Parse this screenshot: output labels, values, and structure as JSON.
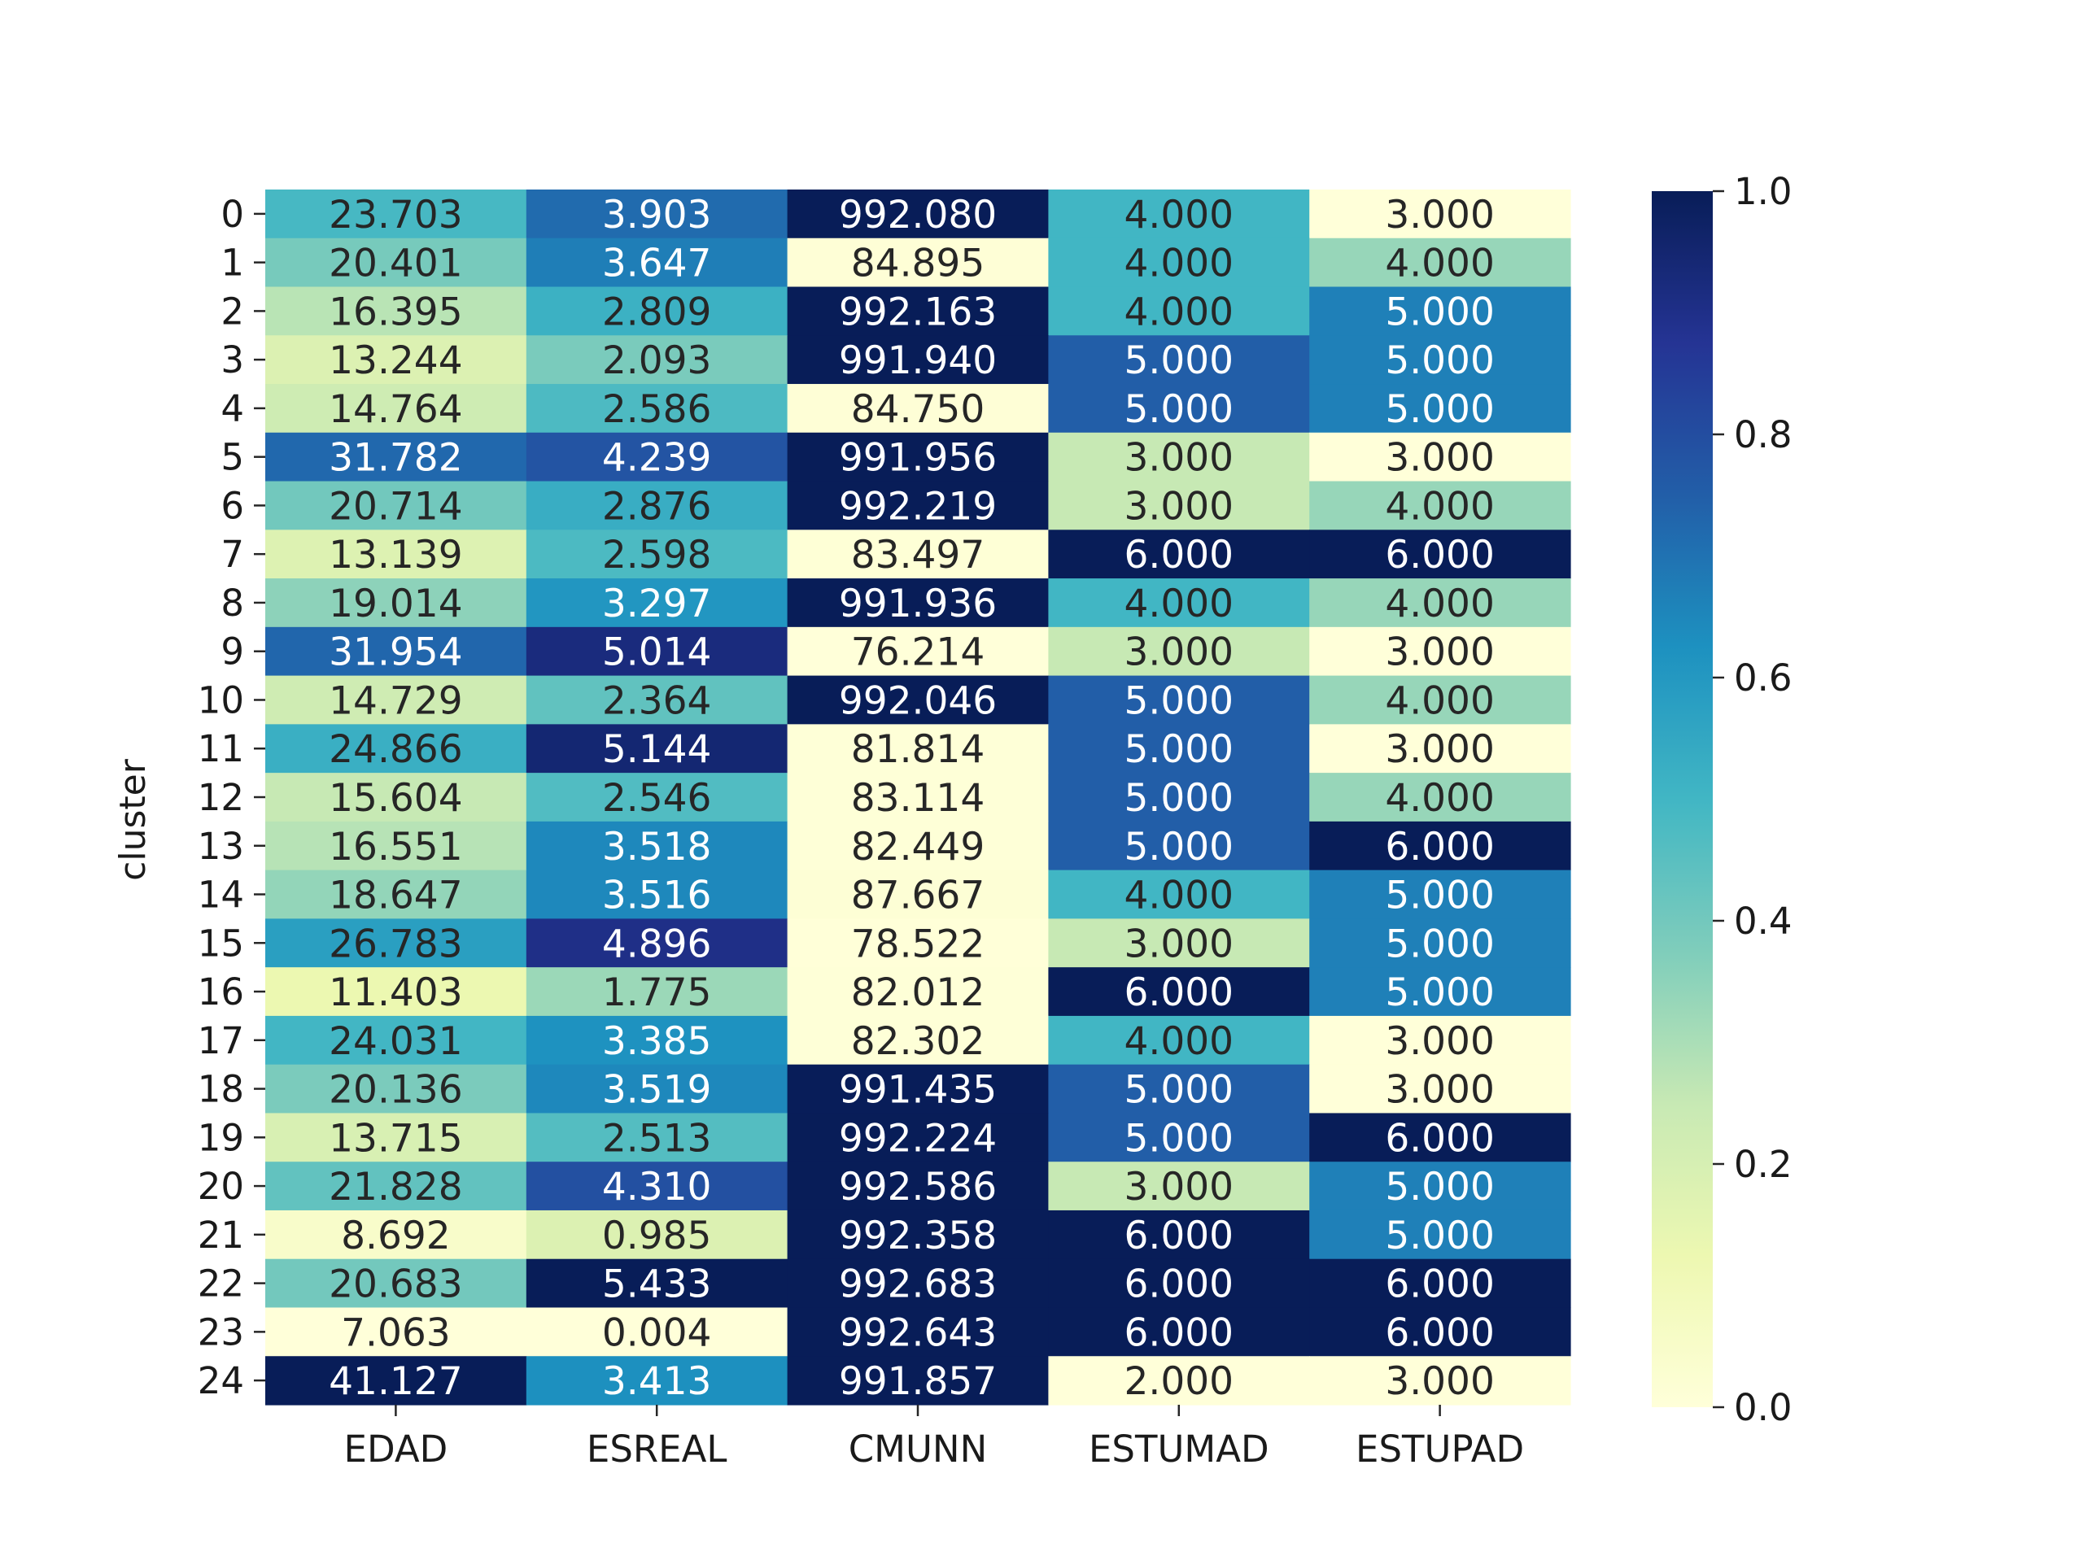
{
  "chart_data": {
    "type": "heatmap",
    "title": "",
    "xlabel": "",
    "ylabel": "cluster",
    "columns": [
      "EDAD",
      "ESREAL",
      "CMUNN",
      "ESTUMAD",
      "ESTUPAD"
    ],
    "rows": [
      "0",
      "1",
      "2",
      "3",
      "4",
      "5",
      "6",
      "7",
      "8",
      "9",
      "10",
      "11",
      "12",
      "13",
      "14",
      "15",
      "16",
      "17",
      "18",
      "19",
      "20",
      "21",
      "22",
      "23",
      "24"
    ],
    "annotations": [
      [
        "23.703",
        "3.903",
        "992.080",
        "4.000",
        "3.000"
      ],
      [
        "20.401",
        "3.647",
        "84.895",
        "4.000",
        "4.000"
      ],
      [
        "16.395",
        "2.809",
        "992.163",
        "4.000",
        "5.000"
      ],
      [
        "13.244",
        "2.093",
        "991.940",
        "5.000",
        "5.000"
      ],
      [
        "14.764",
        "2.586",
        "84.750",
        "5.000",
        "5.000"
      ],
      [
        "31.782",
        "4.239",
        "991.956",
        "3.000",
        "3.000"
      ],
      [
        "20.714",
        "2.876",
        "992.219",
        "3.000",
        "4.000"
      ],
      [
        "13.139",
        "2.598",
        "83.497",
        "6.000",
        "6.000"
      ],
      [
        "19.014",
        "3.297",
        "991.936",
        "4.000",
        "4.000"
      ],
      [
        "31.954",
        "5.014",
        "76.214",
        "3.000",
        "3.000"
      ],
      [
        "14.729",
        "2.364",
        "992.046",
        "5.000",
        "4.000"
      ],
      [
        "24.866",
        "5.144",
        "81.814",
        "5.000",
        "3.000"
      ],
      [
        "15.604",
        "2.546",
        "83.114",
        "5.000",
        "4.000"
      ],
      [
        "16.551",
        "3.518",
        "82.449",
        "5.000",
        "6.000"
      ],
      [
        "18.647",
        "3.516",
        "87.667",
        "4.000",
        "5.000"
      ],
      [
        "26.783",
        "4.896",
        "78.522",
        "3.000",
        "5.000"
      ],
      [
        "11.403",
        "1.775",
        "82.012",
        "6.000",
        "5.000"
      ],
      [
        "24.031",
        "3.385",
        "82.302",
        "4.000",
        "3.000"
      ],
      [
        "20.136",
        "3.519",
        "991.435",
        "5.000",
        "3.000"
      ],
      [
        "13.715",
        "2.513",
        "992.224",
        "5.000",
        "6.000"
      ],
      [
        "21.828",
        "4.310",
        "992.586",
        "3.000",
        "5.000"
      ],
      [
        "8.692",
        "0.985",
        "992.358",
        "6.000",
        "5.000"
      ],
      [
        "20.683",
        "5.433",
        "992.683",
        "6.000",
        "6.000"
      ],
      [
        "7.063",
        "0.004",
        "992.643",
        "6.000",
        "6.000"
      ],
      [
        "41.127",
        "3.413",
        "991.857",
        "2.000",
        "3.000"
      ]
    ],
    "colorbar": {
      "cmap": "YlGnBu",
      "vmin": 0.0,
      "vmax": 1.0,
      "ticks": [
        "0.0",
        "0.2",
        "0.4",
        "0.6",
        "0.8",
        "1.0"
      ],
      "normalization": "per-column min-max"
    },
    "colormap_stops": [
      "#ffffd9",
      "#edf8b1",
      "#c7e9b4",
      "#7fcdbb",
      "#41b6c4",
      "#1d91c0",
      "#225ea8",
      "#253494",
      "#081d58"
    ],
    "grid": false,
    "legend": "colorbar-right"
  }
}
